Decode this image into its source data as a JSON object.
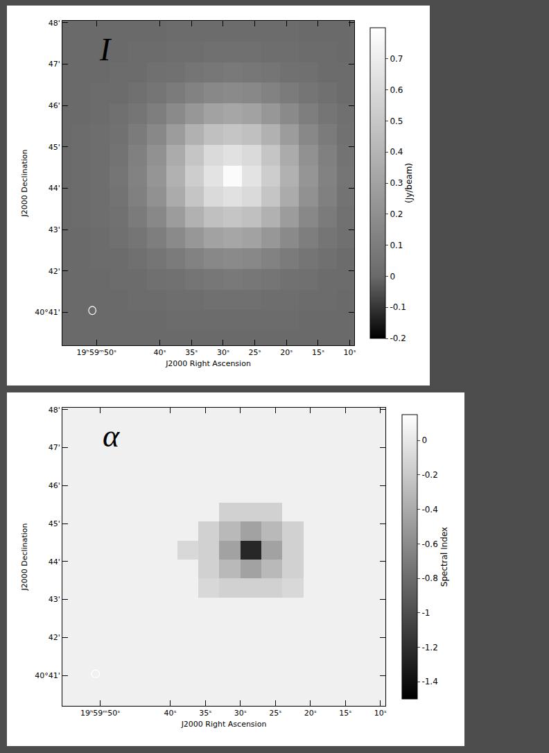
{
  "chart_data": [
    {
      "type": "heatmap",
      "panel_label": "I",
      "x_label": "J2000 Right Ascension",
      "y_label": "J2000 Declination",
      "x": [
        55.5,
        52.5,
        49.5,
        46.5,
        43.5,
        40.5,
        37.5,
        34.5,
        31.5,
        28.5,
        25.5,
        22.5,
        19.5,
        16.5,
        13.5,
        10.5
      ],
      "y": [
        40.3,
        40.8,
        41.3,
        41.8,
        42.3,
        42.8,
        43.3,
        43.8,
        44.3,
        44.8,
        45.3,
        45.8,
        46.3,
        46.8,
        47.3,
        47.8
      ],
      "xlim": [
        55.4,
        9.3
      ],
      "ylim": [
        40.2,
        48.05
      ],
      "xticks": [
        {
          "value": 50,
          "label": "19ʰ59ᵐ50ˢ"
        },
        {
          "value": 40,
          "label": "40ˢ"
        },
        {
          "value": 35,
          "label": "35ˢ"
        },
        {
          "value": 30,
          "label": "30ˢ"
        },
        {
          "value": 25,
          "label": "25ˢ"
        },
        {
          "value": 20,
          "label": "20ˢ"
        },
        {
          "value": 15,
          "label": "15ˢ"
        },
        {
          "value": 10,
          "label": "10ˢ"
        }
      ],
      "yticks": [
        {
          "value": 41,
          "label": "40°41'"
        },
        {
          "value": 42,
          "label": "42'"
        },
        {
          "value": 43,
          "label": "43'"
        },
        {
          "value": 44,
          "label": "44'"
        },
        {
          "value": 45,
          "label": "45'"
        },
        {
          "value": 46,
          "label": "46'"
        },
        {
          "value": 47,
          "label": "47'"
        },
        {
          "value": 48,
          "label": "48'"
        }
      ],
      "colorbar_label": "(Jy/beam)",
      "zlim": [
        -0.2,
        0.8
      ],
      "zticks": [
        -0.2,
        -0.1,
        0,
        0.1,
        0.2,
        0.3,
        0.4,
        0.5,
        0.6,
        0.7
      ],
      "z": [
        [
          0,
          0,
          0,
          0,
          0,
          0,
          0,
          0,
          0,
          0,
          0,
          0,
          0,
          0,
          0,
          0
        ],
        [
          0,
          0,
          0,
          0,
          0,
          0,
          0.01,
          0.01,
          0.01,
          0.01,
          0.01,
          0.01,
          0.01,
          0,
          0,
          0
        ],
        [
          0,
          0,
          0,
          0,
          0.01,
          0.01,
          0.02,
          0.02,
          0.03,
          0.03,
          0.03,
          0.02,
          0.02,
          0.01,
          0.01,
          0
        ],
        [
          0,
          0,
          0,
          0.01,
          0.01,
          0.03,
          0.04,
          0.06,
          0.07,
          0.08,
          0.07,
          0.06,
          0.04,
          0.03,
          0.01,
          0.01
        ],
        [
          0,
          0,
          0.01,
          0.01,
          0.03,
          0.06,
          0.09,
          0.13,
          0.16,
          0.17,
          0.16,
          0.13,
          0.09,
          0.06,
          0.03,
          0.01
        ],
        [
          0,
          0,
          0.01,
          0.03,
          0.06,
          0.11,
          0.17,
          0.24,
          0.3,
          0.32,
          0.3,
          0.24,
          0.17,
          0.11,
          0.06,
          0.03
        ],
        [
          0,
          0.01,
          0.02,
          0.04,
          0.09,
          0.16,
          0.27,
          0.38,
          0.46,
          0.49,
          0.46,
          0.38,
          0.27,
          0.16,
          0.09,
          0.04
        ],
        [
          0,
          0.01,
          0.02,
          0.05,
          0.12,
          0.21,
          0.35,
          0.49,
          0.6,
          0.64,
          0.6,
          0.49,
          0.35,
          0.21,
          0.12,
          0.05
        ],
        [
          0,
          0.01,
          0.02,
          0.06,
          0.13,
          0.23,
          0.38,
          0.53,
          0.65,
          0.78,
          0.65,
          0.53,
          0.38,
          0.23,
          0.13,
          0.06
        ],
        [
          0,
          0.01,
          0.02,
          0.05,
          0.12,
          0.21,
          0.35,
          0.49,
          0.6,
          0.64,
          0.6,
          0.49,
          0.35,
          0.21,
          0.12,
          0.05
        ],
        [
          0,
          0.01,
          0.02,
          0.04,
          0.09,
          0.16,
          0.27,
          0.38,
          0.46,
          0.49,
          0.46,
          0.38,
          0.27,
          0.16,
          0.09,
          0.04
        ],
        [
          0,
          0,
          0.01,
          0.03,
          0.06,
          0.11,
          0.17,
          0.24,
          0.3,
          0.32,
          0.3,
          0.24,
          0.17,
          0.11,
          0.06,
          0.03
        ],
        [
          0,
          0,
          0.01,
          0.01,
          0.03,
          0.06,
          0.09,
          0.13,
          0.16,
          0.17,
          0.16,
          0.13,
          0.09,
          0.06,
          0.03,
          0.01
        ],
        [
          0,
          0,
          0,
          0.01,
          0.01,
          0.03,
          0.04,
          0.06,
          0.07,
          0.08,
          0.07,
          0.06,
          0.04,
          0.03,
          0.01,
          0.01
        ],
        [
          0,
          0,
          0,
          0,
          0.01,
          0.01,
          0.02,
          0.02,
          0.03,
          0.03,
          0.03,
          0.02,
          0.02,
          0.01,
          0.01,
          0
        ],
        [
          0,
          0,
          0,
          0,
          0,
          0,
          0.01,
          0.01,
          0.01,
          0.01,
          0.01,
          0.01,
          0.01,
          0,
          0,
          0
        ]
      ]
    },
    {
      "type": "heatmap",
      "panel_label": "α",
      "x_label": "J2000 Right Ascension",
      "y_label": "J2000 Declination",
      "x": [
        55.5,
        52.5,
        49.5,
        46.5,
        43.5,
        40.5,
        37.5,
        34.5,
        31.5,
        28.5,
        25.5,
        22.5,
        19.5,
        16.5,
        13.5,
        10.5
      ],
      "y": [
        40.3,
        40.8,
        41.3,
        41.8,
        42.3,
        42.8,
        43.3,
        43.8,
        44.3,
        44.8,
        45.3,
        45.8,
        46.3,
        46.8,
        47.3,
        47.8
      ],
      "xlim": [
        55.4,
        9.3
      ],
      "ylim": [
        40.2,
        48.05
      ],
      "xticks": [
        {
          "value": 50,
          "label": "19ʰ59ᵐ50ˢ"
        },
        {
          "value": 40,
          "label": "40ˢ"
        },
        {
          "value": 35,
          "label": "35ˢ"
        },
        {
          "value": 30,
          "label": "30ˢ"
        },
        {
          "value": 25,
          "label": "25ˢ"
        },
        {
          "value": 20,
          "label": "20ˢ"
        },
        {
          "value": 15,
          "label": "15ˢ"
        },
        {
          "value": 10,
          "label": "10ˢ"
        }
      ],
      "yticks": [
        {
          "value": 41,
          "label": "40°41'"
        },
        {
          "value": 42,
          "label": "42'"
        },
        {
          "value": 43,
          "label": "43'"
        },
        {
          "value": 44,
          "label": "44'"
        },
        {
          "value": 45,
          "label": "45'"
        },
        {
          "value": 46,
          "label": "46'"
        },
        {
          "value": 47,
          "label": "47'"
        },
        {
          "value": 48,
          "label": "48'"
        }
      ],
      "colorbar_label": "Spectral Index",
      "zlim": [
        -1.5,
        0.15
      ],
      "zticks": [
        0,
        -0.2,
        -0.4,
        -0.6,
        -0.8,
        -1,
        -1.2,
        -1.4
      ],
      "z": [
        [
          0.05,
          0.05,
          0.05,
          0.05,
          0.05,
          0.05,
          0.05,
          0.05,
          0.05,
          0.05,
          0.05,
          0.05,
          0.05,
          0.05,
          0.05,
          0.05
        ],
        [
          0.05,
          0.05,
          0.05,
          0.05,
          0.05,
          0.05,
          0.05,
          0.05,
          0.05,
          0.05,
          0.05,
          0.05,
          0.05,
          0.05,
          0.05,
          0.05
        ],
        [
          0.05,
          0.05,
          0.05,
          0.05,
          0.05,
          0.05,
          0.05,
          0.05,
          0.05,
          0.05,
          0.05,
          0.05,
          0.05,
          0.05,
          0.05,
          0.05
        ],
        [
          0.05,
          0.05,
          0.05,
          0.05,
          0.05,
          0.05,
          0.05,
          0.05,
          0.05,
          0.05,
          0.05,
          0.05,
          0.05,
          0.05,
          0.05,
          0.05
        ],
        [
          0.05,
          0.05,
          0.05,
          0.05,
          0.05,
          0.05,
          0.05,
          0.05,
          0.05,
          0.05,
          0.05,
          0.05,
          0.05,
          0.05,
          0.05,
          0.05
        ],
        [
          0.05,
          0.05,
          0.05,
          0.05,
          0.05,
          0.05,
          0.05,
          0.05,
          0.05,
          0.05,
          0.05,
          0.05,
          0.05,
          0.05,
          0.05,
          0.05
        ],
        [
          0.05,
          0.05,
          0.05,
          0.05,
          0.05,
          0.05,
          0.05,
          -0.1,
          -0.15,
          -0.15,
          -0.15,
          -0.1,
          0.05,
          0.05,
          0.05,
          0.05
        ],
        [
          0.05,
          0.05,
          0.05,
          0.05,
          0.05,
          0.05,
          0.05,
          -0.15,
          -0.3,
          -0.45,
          -0.3,
          -0.15,
          0.05,
          0.05,
          0.05,
          0.05
        ],
        [
          0.05,
          0.05,
          0.05,
          0.05,
          0.05,
          0.05,
          -0.1,
          -0.15,
          -0.45,
          -1.25,
          -0.45,
          -0.15,
          0.05,
          0.05,
          0.05,
          0.05
        ],
        [
          0.05,
          0.05,
          0.05,
          0.05,
          0.05,
          0.05,
          0.05,
          -0.15,
          -0.3,
          -0.45,
          -0.3,
          -0.15,
          0.05,
          0.05,
          0.05,
          0.05
        ],
        [
          0.05,
          0.05,
          0.05,
          0.05,
          0.05,
          0.05,
          0.05,
          0.05,
          -0.15,
          -0.15,
          -0.15,
          0.05,
          0.05,
          0.05,
          0.05,
          0.05
        ],
        [
          0.05,
          0.05,
          0.05,
          0.05,
          0.05,
          0.05,
          0.05,
          0.05,
          0.05,
          0.05,
          0.05,
          0.05,
          0.05,
          0.05,
          0.05,
          0.05
        ],
        [
          0.05,
          0.05,
          0.05,
          0.05,
          0.05,
          0.05,
          0.05,
          0.05,
          0.05,
          0.05,
          0.05,
          0.05,
          0.05,
          0.05,
          0.05,
          0.05
        ],
        [
          0.05,
          0.05,
          0.05,
          0.05,
          0.05,
          0.05,
          0.05,
          0.05,
          0.05,
          0.05,
          0.05,
          0.05,
          0.05,
          0.05,
          0.05,
          0.05
        ],
        [
          0.05,
          0.05,
          0.05,
          0.05,
          0.05,
          0.05,
          0.05,
          0.05,
          0.05,
          0.05,
          0.05,
          0.05,
          0.05,
          0.05,
          0.05,
          0.05
        ],
        [
          0.05,
          0.05,
          0.05,
          0.05,
          0.05,
          0.05,
          0.05,
          0.05,
          0.05,
          0.05,
          0.05,
          0.05,
          0.05,
          0.05,
          0.05,
          0.05
        ]
      ]
    }
  ]
}
